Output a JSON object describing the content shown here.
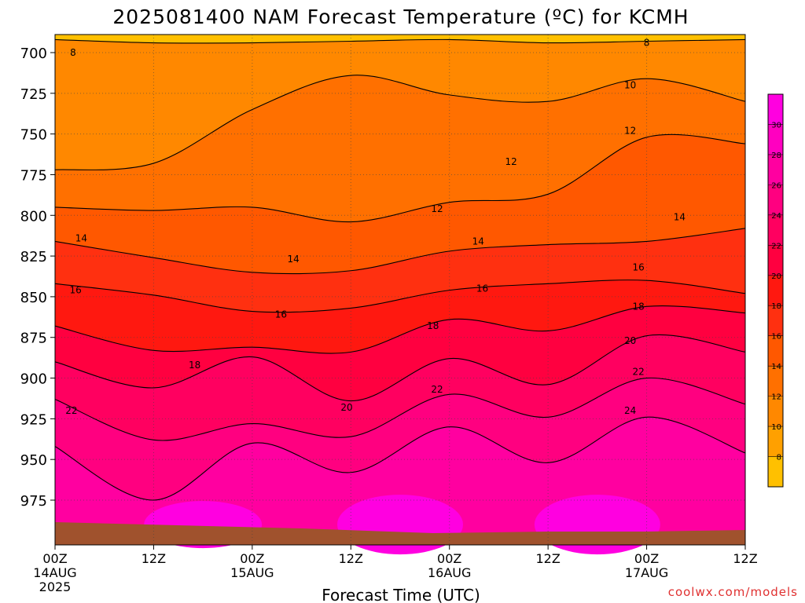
{
  "chart_data": {
    "type": "heatmap",
    "title": "2025081400 NAM Forecast Temperature (ºC) for KCMH",
    "xlabel": "Forecast Time (UTC)",
    "ylabel": "",
    "y_scale": "pressure (hPa), increasing downward",
    "ylim": [
      690,
      995
    ],
    "xlim": [
      "2025-08-14 00Z",
      "2025-08-17 12Z"
    ],
    "x_ticks": [
      {
        "hour": 0,
        "label": "00Z",
        "sub1": "14AUG",
        "sub2": "2025"
      },
      {
        "hour": 12,
        "label": "12Z",
        "sub1": "",
        "sub2": ""
      },
      {
        "hour": 24,
        "label": "00Z",
        "sub1": "15AUG",
        "sub2": ""
      },
      {
        "hour": 36,
        "label": "12Z",
        "sub1": "",
        "sub2": ""
      },
      {
        "hour": 48,
        "label": "00Z",
        "sub1": "16AUG",
        "sub2": ""
      },
      {
        "hour": 60,
        "label": "12Z",
        "sub1": "",
        "sub2": ""
      },
      {
        "hour": 72,
        "label": "00Z",
        "sub1": "17AUG",
        "sub2": ""
      },
      {
        "hour": 84,
        "label": "12Z",
        "sub1": "",
        "sub2": ""
      }
    ],
    "y_ticks": [
      700,
      725,
      750,
      775,
      800,
      825,
      850,
      875,
      900,
      925,
      950,
      975
    ],
    "colorbar": {
      "ticks": [
        8,
        10,
        12,
        14,
        16,
        18,
        20,
        22,
        24,
        26,
        28,
        30
      ],
      "colors": [
        "#ffc000",
        "#ffa000",
        "#ff8800",
        "#ff7000",
        "#ff5800",
        "#ff3010",
        "#ff1810",
        "#ff0040",
        "#ff0060",
        "#ff0080",
        "#ff00a0",
        "#ff00c0",
        "#ff00e0"
      ]
    },
    "ground_color": "#a0522d",
    "grid": true,
    "contour_levels": [
      8,
      10,
      12,
      14,
      16,
      18,
      20,
      22,
      24
    ],
    "contours": [
      {
        "level": 8,
        "pressure": [
          692,
          694,
          694,
          693,
          692,
          694,
          693,
          692
        ]
      },
      {
        "level": 10,
        "pressure": [
          772,
          768,
          735,
          714,
          726,
          730,
          716,
          730
        ]
      },
      {
        "level": 12,
        "pressure": [
          795,
          797,
          795,
          804,
          792,
          787,
          752,
          756
        ]
      },
      {
        "level": 14,
        "pressure": [
          816,
          826,
          835,
          834,
          822,
          818,
          816,
          808
        ]
      },
      {
        "level": 16,
        "pressure": [
          842,
          849,
          859,
          857,
          846,
          842,
          840,
          848
        ]
      },
      {
        "level": 18,
        "pressure": [
          868,
          883,
          881,
          884,
          864,
          871,
          856,
          860
        ]
      },
      {
        "level": 20,
        "pressure": [
          890,
          906,
          887,
          914,
          888,
          904,
          874,
          884
        ]
      },
      {
        "level": 22,
        "pressure": [
          913,
          938,
          928,
          936,
          910,
          924,
          900,
          916
        ]
      },
      {
        "level": 24,
        "pressure": [
          942,
          975,
          940,
          958,
          930,
          952,
          924,
          946
        ]
      }
    ],
    "contour_labels": [
      {
        "value": "8",
        "hour": 2.2,
        "pressure": 700
      },
      {
        "value": "8",
        "hour": 72,
        "pressure": 694
      },
      {
        "value": "10",
        "hour": 70,
        "pressure": 720
      },
      {
        "value": "12",
        "hour": 70,
        "pressure": 748
      },
      {
        "value": "12",
        "hour": 55.5,
        "pressure": 767
      },
      {
        "value": "12",
        "hour": 46.5,
        "pressure": 796
      },
      {
        "value": "14",
        "hour": 3.2,
        "pressure": 814
      },
      {
        "value": "14",
        "hour": 29,
        "pressure": 827
      },
      {
        "value": "14",
        "hour": 51.5,
        "pressure": 816
      },
      {
        "value": "14",
        "hour": 76,
        "pressure": 801
      },
      {
        "value": "16",
        "hour": 2.5,
        "pressure": 846
      },
      {
        "value": "16",
        "hour": 27.5,
        "pressure": 861
      },
      {
        "value": "16",
        "hour": 52,
        "pressure": 845
      },
      {
        "value": "16",
        "hour": 71,
        "pressure": 832
      },
      {
        "value": "18",
        "hour": 17,
        "pressure": 892
      },
      {
        "value": "18",
        "hour": 46,
        "pressure": 868
      },
      {
        "value": "18",
        "hour": 71,
        "pressure": 856
      },
      {
        "value": "20",
        "hour": 35.5,
        "pressure": 918
      },
      {
        "value": "20",
        "hour": 70,
        "pressure": 877
      },
      {
        "value": "22",
        "hour": 2,
        "pressure": 920
      },
      {
        "value": "22",
        "hour": 46.5,
        "pressure": 907
      },
      {
        "value": "22",
        "hour": 71,
        "pressure": 896
      },
      {
        "value": "24",
        "hour": 70,
        "pressure": 920
      }
    ]
  },
  "credit": "coolwx.com/models"
}
